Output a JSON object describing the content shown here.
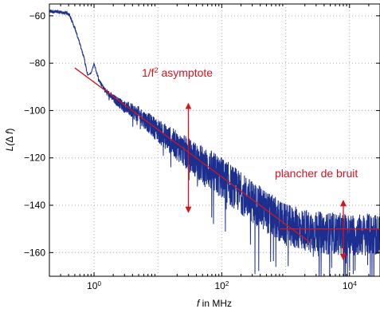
{
  "chart_data": {
    "type": "line",
    "x_scale": "log",
    "xlim": [
      0.2,
      30000
    ],
    "ylim": [
      -170,
      -55
    ],
    "grid": true,
    "xlabel": {
      "var": "f",
      "rest": " in MHz"
    },
    "ylabel": {
      "pre": "L(",
      "mid": "Δ ",
      "var": "f",
      "post": ")"
    },
    "x_ticks": [
      {
        "value": 1,
        "base": "10",
        "exp": "0"
      },
      {
        "value": 100,
        "base": "10",
        "exp": "2"
      },
      {
        "value": 10000,
        "base": "10",
        "exp": "4"
      }
    ],
    "y_ticks": [
      -60,
      -80,
      -100,
      -120,
      -140,
      -160
    ],
    "series": [
      {
        "color": "#1a2f8f",
        "x": [
          0.2,
          0.3,
          0.4,
          0.5,
          0.6,
          0.7,
          0.8,
          0.9,
          1.0,
          1.2,
          1.5,
          2.0,
          3.0,
          5.0,
          10,
          30,
          100,
          300,
          1000,
          3000,
          10000,
          30000
        ],
        "y": [
          -58,
          -58.5,
          -59,
          -65,
          -72,
          -78,
          -85,
          -84,
          -80,
          -87,
          -91,
          -94,
          -97,
          -100,
          -106,
          -115,
          -124,
          -134,
          -144,
          -147,
          -148,
          -148
        ]
      }
    ],
    "annotations": [
      {
        "kind": "asymptote",
        "label_base": "1/f",
        "label_sup": "2",
        "label_rest": " asymptote",
        "color": "#d9121c",
        "line": [
          [
            0.5,
            -82
          ],
          [
            2500,
            -156
          ]
        ],
        "arrow": {
          "x": 30,
          "y": [
            -97,
            -143
          ]
        }
      },
      {
        "kind": "noise-floor",
        "label": "plancher de bruit",
        "color": "#d9121c",
        "line": [
          [
            800,
            -150
          ],
          [
            30000,
            -150
          ]
        ],
        "arrow": {
          "x": 8000,
          "y": [
            -138,
            -163
          ]
        }
      }
    ]
  }
}
